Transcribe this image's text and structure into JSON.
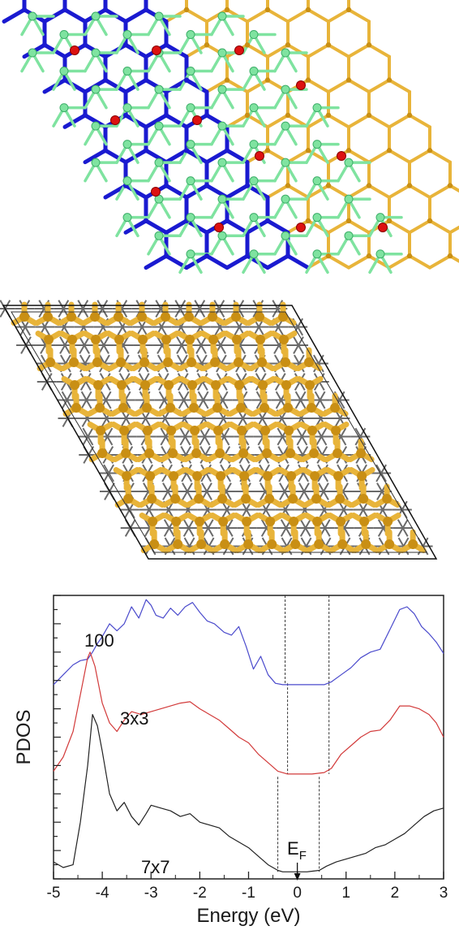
{
  "colors": {
    "gold": "#e8b43a",
    "gold_dark": "#c98f14",
    "blue": "#1a1ad0",
    "green": "#7fe3a0",
    "green_dark": "#3cae68",
    "red": "#dd1111",
    "gray": "#555555",
    "curve_100": "#4a4acc",
    "curve_3x3": "#d23a3a",
    "curve_7x7": "#222222"
  },
  "chart_data": {
    "type": "line",
    "xlabel": "Energy (eV)",
    "ylabel": "PDOS",
    "xlim": [
      -5,
      3
    ],
    "ylim": [
      0,
      10
    ],
    "xticks": [
      "-5",
      "-4",
      "-3",
      "-2",
      "-1",
      "0",
      "1",
      "2",
      "3"
    ],
    "grid": false,
    "fermi_label": {
      "main": "E",
      "sub": "F"
    },
    "series": [
      {
        "name": "100",
        "color": "#4a4acc",
        "x": [
          -5.0,
          -4.8,
          -4.6,
          -4.45,
          -4.3,
          -4.2,
          -4.1,
          -4.0,
          -3.85,
          -3.7,
          -3.55,
          -3.4,
          -3.25,
          -3.1,
          -3.0,
          -2.9,
          -2.75,
          -2.6,
          -2.45,
          -2.3,
          -2.15,
          -2.0,
          -1.85,
          -1.7,
          -1.5,
          -1.35,
          -1.2,
          -1.05,
          -0.9,
          -0.75,
          -0.6,
          -0.45,
          -0.3,
          -0.2,
          0.0,
          0.3,
          0.55,
          0.7,
          0.9,
          1.1,
          1.3,
          1.5,
          1.7,
          1.9,
          2.1,
          2.25,
          2.4,
          2.55,
          2.7,
          2.85,
          3.0
        ],
        "y": [
          6.85,
          7.2,
          7.55,
          7.7,
          7.75,
          8.0,
          8.3,
          8.55,
          9.0,
          8.75,
          9.0,
          9.6,
          9.2,
          9.85,
          9.65,
          9.3,
          9.2,
          9.55,
          9.3,
          9.6,
          9.75,
          9.4,
          9.1,
          9.0,
          8.7,
          8.6,
          8.9,
          8.2,
          7.4,
          7.85,
          7.2,
          6.9,
          6.85,
          6.85,
          6.85,
          6.85,
          6.85,
          6.95,
          7.2,
          7.45,
          7.8,
          8.0,
          8.1,
          8.8,
          9.5,
          9.6,
          9.35,
          8.9,
          8.65,
          8.35,
          7.95
        ]
      },
      {
        "name": "3x3",
        "color": "#d23a3a",
        "x": [
          -5.0,
          -4.8,
          -4.6,
          -4.45,
          -4.3,
          -4.25,
          -4.15,
          -4.0,
          -3.85,
          -3.7,
          -3.55,
          -3.4,
          -3.2,
          -3.0,
          -2.8,
          -2.6,
          -2.4,
          -2.2,
          -2.0,
          -1.8,
          -1.6,
          -1.4,
          -1.2,
          -1.0,
          -0.8,
          -0.6,
          -0.4,
          -0.2,
          0.0,
          0.3,
          0.55,
          0.7,
          0.9,
          1.1,
          1.3,
          1.5,
          1.7,
          1.9,
          2.1,
          2.3,
          2.5,
          2.7,
          2.85,
          3.0
        ],
        "y": [
          3.8,
          4.3,
          5.2,
          6.5,
          7.8,
          8.0,
          7.5,
          6.2,
          5.5,
          5.2,
          5.6,
          5.9,
          5.8,
          5.9,
          6.0,
          6.1,
          6.2,
          6.25,
          6.0,
          5.8,
          5.6,
          5.3,
          5.0,
          4.8,
          4.4,
          4.1,
          3.8,
          3.7,
          3.7,
          3.7,
          3.75,
          3.9,
          4.4,
          4.7,
          5.0,
          5.2,
          5.25,
          5.6,
          6.1,
          6.1,
          6.0,
          5.8,
          5.5,
          5.0
        ]
      },
      {
        "name": "7x7",
        "color": "#222222",
        "x": [
          -5.0,
          -4.8,
          -4.6,
          -4.45,
          -4.3,
          -4.2,
          -4.1,
          -4.0,
          -3.85,
          -3.7,
          -3.55,
          -3.4,
          -3.25,
          -3.1,
          -3.0,
          -2.8,
          -2.6,
          -2.4,
          -2.2,
          -2.0,
          -1.8,
          -1.6,
          -1.4,
          -1.2,
          -1.0,
          -0.8,
          -0.6,
          -0.4,
          -0.3,
          -0.2,
          0.0,
          0.2,
          0.45,
          0.6,
          0.8,
          1.0,
          1.2,
          1.4,
          1.6,
          1.8,
          2.0,
          2.2,
          2.4,
          2.6,
          2.8,
          3.0
        ],
        "y": [
          0.6,
          0.4,
          0.5,
          2.0,
          4.0,
          5.8,
          5.4,
          4.5,
          3.0,
          2.4,
          2.7,
          2.2,
          1.9,
          2.3,
          2.6,
          2.5,
          2.4,
          2.2,
          2.3,
          2.0,
          1.9,
          1.8,
          1.5,
          1.3,
          1.1,
          0.8,
          0.5,
          0.3,
          0.25,
          0.25,
          0.25,
          0.25,
          0.3,
          0.45,
          0.6,
          0.7,
          0.8,
          0.9,
          1.1,
          1.2,
          1.4,
          1.6,
          1.9,
          2.2,
          2.4,
          2.5
        ]
      }
    ],
    "annotations": [
      "100",
      "3x3",
      "7x7"
    ]
  }
}
